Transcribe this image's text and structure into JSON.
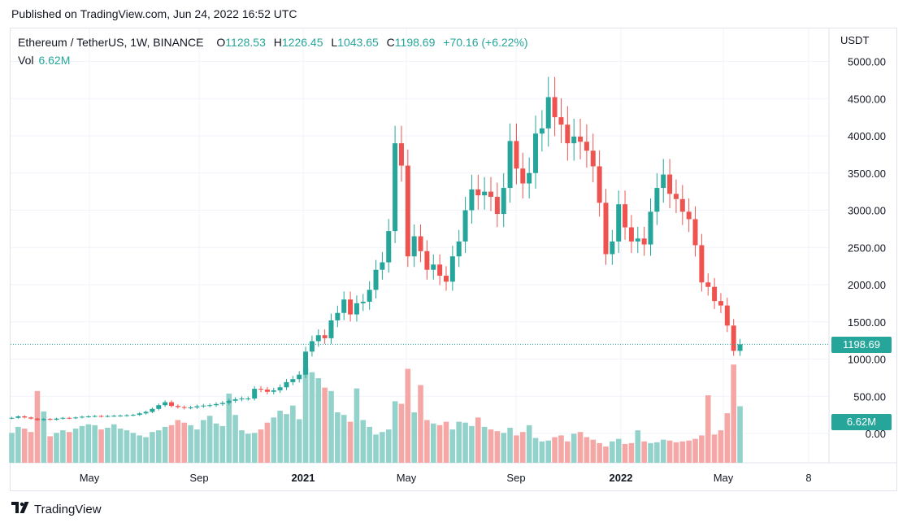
{
  "published": "Published on TradingView.com, Jun 24, 2022 16:52 UTC",
  "legend": {
    "symbol": "Ethereum / TetherUS, 1W, BINANCE",
    "o_label": "O",
    "o_value": "1128.53",
    "h_label": "H",
    "h_value": "1226.45",
    "l_label": "L",
    "l_value": "1043.65",
    "c_label": "C",
    "c_value": "1198.69",
    "change": "+70.16 (+6.22%)",
    "vol_label": "Vol",
    "vol_value": "6.62M"
  },
  "price_axis": {
    "currency": "USDT",
    "ticks": [
      "5000.00",
      "4500.00",
      "4000.00",
      "3500.00",
      "3000.00",
      "2500.00",
      "2000.00",
      "1500.00",
      "1000.00",
      "500.00",
      "0.00"
    ],
    "last_price_label": "1198.69",
    "last_volume_label": "6.62M"
  },
  "time_axis": {
    "labels": [
      "May",
      "Sep",
      "2021",
      "May",
      "Sep",
      "2022",
      "May",
      "8"
    ]
  },
  "footer": {
    "brand": "TradingView"
  },
  "colors": {
    "up": "#26a69a",
    "down": "#ef5350",
    "up_vol": "#93d2cb",
    "down_vol": "#f5a7a6",
    "grid": "#f0f3fa"
  },
  "chart_data": {
    "type": "candlestick",
    "title": "Ethereum / TetherUS, 1W, BINANCE",
    "ylabel": "USDT",
    "ylim": [
      0,
      5000
    ],
    "grid": true,
    "time_labels": [
      "May",
      "Sep",
      "2021",
      "May",
      "Sep",
      "2022",
      "May",
      "8"
    ],
    "last_price": 1198.69,
    "last_volume": "6.62M",
    "closes": [
      210,
      230,
      215,
      200,
      180,
      195,
      185,
      200,
      210,
      205,
      215,
      225,
      230,
      235,
      230,
      235,
      238,
      240,
      245,
      250,
      270,
      290,
      330,
      380,
      420,
      370,
      355,
      345,
      350,
      365,
      375,
      380,
      395,
      410,
      440,
      460,
      470,
      470,
      600,
      590,
      560,
      580,
      620,
      690,
      730,
      790,
      1100,
      1240,
      1320,
      1280,
      1520,
      1620,
      1800,
      1600,
      1750,
      1770,
      1930,
      2200,
      2300,
      2720,
      3900,
      3600,
      2380,
      2650,
      2450,
      2200,
      2270,
      2120,
      2040,
      2380,
      2580,
      3000,
      3280,
      3200,
      3250,
      3180,
      2950,
      3300,
      3930,
      3560,
      3360,
      3500,
      4030,
      4100,
      4520,
      4250,
      4150,
      3900,
      3990,
      3920,
      3800,
      3590,
      3100,
      2410,
      2580,
      3080,
      2770,
      2580,
      2620,
      2540,
      2980,
      3300,
      3480,
      3220,
      3150,
      2980,
      2880,
      2530,
      2030,
      1970,
      1780,
      1720,
      1450,
      1110,
      1198.69
    ],
    "volumes": [
      3.5,
      4.2,
      4.0,
      3.6,
      8.4,
      6.0,
      3.1,
      3.5,
      3.8,
      3.6,
      4.0,
      4.3,
      4.5,
      4.4,
      3.9,
      4.1,
      4.5,
      4.0,
      3.8,
      3.5,
      3.2,
      3.0,
      3.6,
      3.8,
      4.2,
      4.4,
      5.0,
      4.7,
      4.4,
      3.9,
      5.0,
      5.5,
      4.6,
      4.3,
      8.1,
      5.6,
      3.8,
      3.4,
      3.5,
      3.9,
      4.7,
      5.3,
      6.1,
      5.7,
      6.7,
      5.1,
      11.1,
      10.6,
      9.9,
      8.8,
      8.4,
      5.9,
      5.6,
      4.8,
      8.7,
      5.0,
      4.2,
      3.3,
      3.6,
      3.9,
      7.2,
      6.9,
      11.0,
      5.9,
      9.1,
      5.0,
      4.6,
      4.4,
      4.8,
      3.9,
      4.8,
      4.7,
      4.3,
      5.3,
      4.2,
      3.9,
      3.7,
      3.5,
      4.1,
      3.2,
      3.6,
      4.4,
      2.9,
      2.5,
      2.6,
      3.0,
      3.2,
      2.5,
      3.4,
      3.6,
      3.0,
      2.7,
      2.3,
      1.9,
      2.5,
      2.8,
      2.2,
      2.3,
      3.8,
      2.5,
      2.3,
      2.4,
      2.7,
      2.6,
      2.4,
      2.5,
      2.6,
      2.8,
      3.2,
      7.9,
      3.3,
      3.8,
      5.8,
      11.5,
      6.62
    ]
  }
}
